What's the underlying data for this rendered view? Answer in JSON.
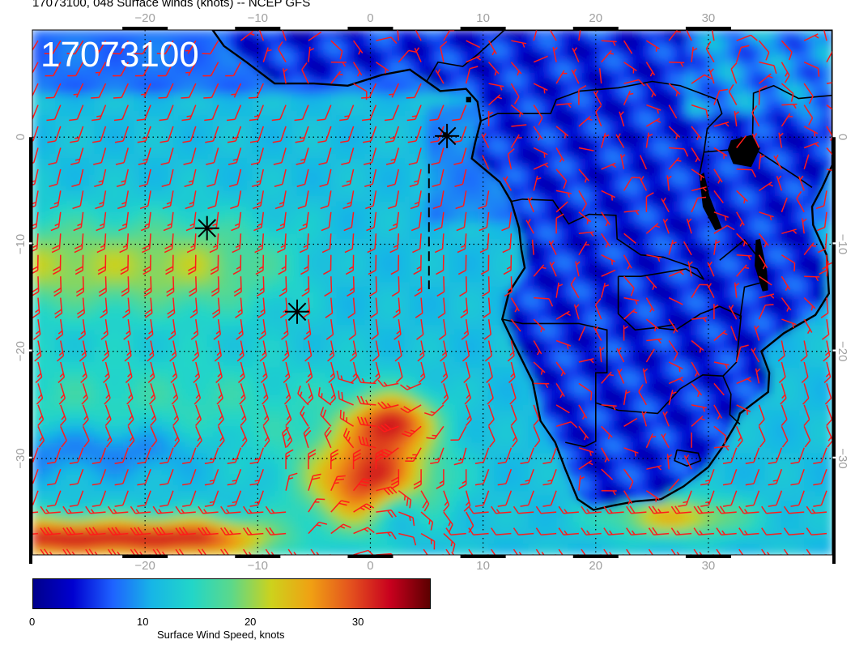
{
  "title": "17073100, 048 Surface winds (knots) -- NCEP GFS",
  "overlay_stamp": "17073100",
  "map": {
    "lon_range": [
      -30,
      41
    ],
    "lat_range": [
      -39,
      10
    ],
    "lon_ticks": [
      -20,
      -10,
      0,
      10,
      20,
      30
    ],
    "lat_ticks": [
      0,
      -10,
      -20,
      -30
    ],
    "lon_tick_labels_top": [
      "−20",
      "−10",
      "0",
      "10",
      "20",
      "30"
    ],
    "lon_tick_labels_bottom": [
      "−20",
      "−10",
      "0",
      "10",
      "20",
      "30"
    ],
    "lat_tick_labels_left": [
      "0",
      "−10",
      "−20",
      "−30"
    ],
    "lat_tick_labels_right": [
      "0",
      "−10",
      "−20",
      "−30"
    ],
    "barb_color": "#ff1a1a",
    "grid": true,
    "storm_markers": [
      {
        "lon": -14.5,
        "lat": -8.5
      },
      {
        "lon": -6.5,
        "lat": -16.3
      },
      {
        "lon": 6.8,
        "lat": 0.1
      }
    ]
  },
  "colorbar": {
    "label": "Surface Wind Speed, knots",
    "min": 0,
    "max": 37,
    "tick_values": [
      0,
      10,
      20,
      30
    ],
    "tick_labels": [
      "0",
      "10",
      "20",
      "30"
    ],
    "colors": [
      "#00008b",
      "#0000d0",
      "#1e62ff",
      "#17b6e6",
      "#22d6c8",
      "#5cd88a",
      "#cdd21c",
      "#f0a013",
      "#e4521e",
      "#c8001e",
      "#5c0000"
    ]
  }
}
